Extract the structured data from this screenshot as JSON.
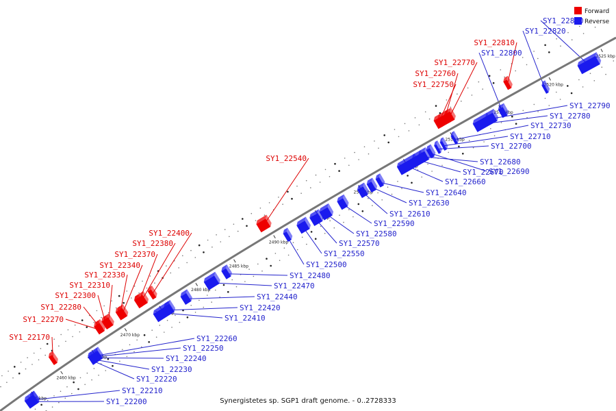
{
  "caption": "Synergistetes sp. SGP1 draft genome. - 0..2728333",
  "legend": {
    "forward": {
      "label": "Forward",
      "color": "#ee0000"
    },
    "reverse": {
      "label": "Reverse",
      "color": "#1a1aee"
    }
  },
  "genome": {
    "ticks": [
      "2455 kbp",
      "2460 kbp",
      "2465 kbp",
      "2470 kbp",
      "2475 kbp",
      "2480 kbp",
      "2485 kbp",
      "2490 kbp",
      "2495 kbp",
      "2500 kbp",
      "2505 kbp",
      "2510 kbp",
      "2515 kbp",
      "2520 kbp",
      "2525 kbp"
    ],
    "forward_genes": [
      "SY1_22170",
      "SY1_22270",
      "SY1_22280",
      "SY1_22300",
      "SY1_22310",
      "SY1_22330",
      "SY1_22340",
      "SY1_22370",
      "SY1_22380",
      "SY1_22400",
      "SY1_22540",
      "SY1_22750",
      "SY1_22760",
      "SY1_22770",
      "SY1_22810"
    ],
    "reverse_genes": [
      "SY1_22200",
      "SY1_22210",
      "SY1_22220",
      "SY1_22230",
      "SY1_22240",
      "SY1_22250",
      "SY1_22260",
      "SY1_22410",
      "SY1_22420",
      "SY1_22440",
      "SY1_22470",
      "SY1_22480",
      "SY1_22500",
      "SY1_22550",
      "SY1_22570",
      "SY1_22580",
      "SY1_22590",
      "SY1_22610",
      "SY1_22630",
      "SY1_22640",
      "SY1_22660",
      "SY1_22670",
      "SY1_22680",
      "SY1_22690",
      "SY1_22700",
      "SY1_22710",
      "SY1_22730",
      "SY1_22780",
      "SY1_22790",
      "SY1_22800",
      "SY1_22820",
      "SY1_22850"
    ]
  }
}
